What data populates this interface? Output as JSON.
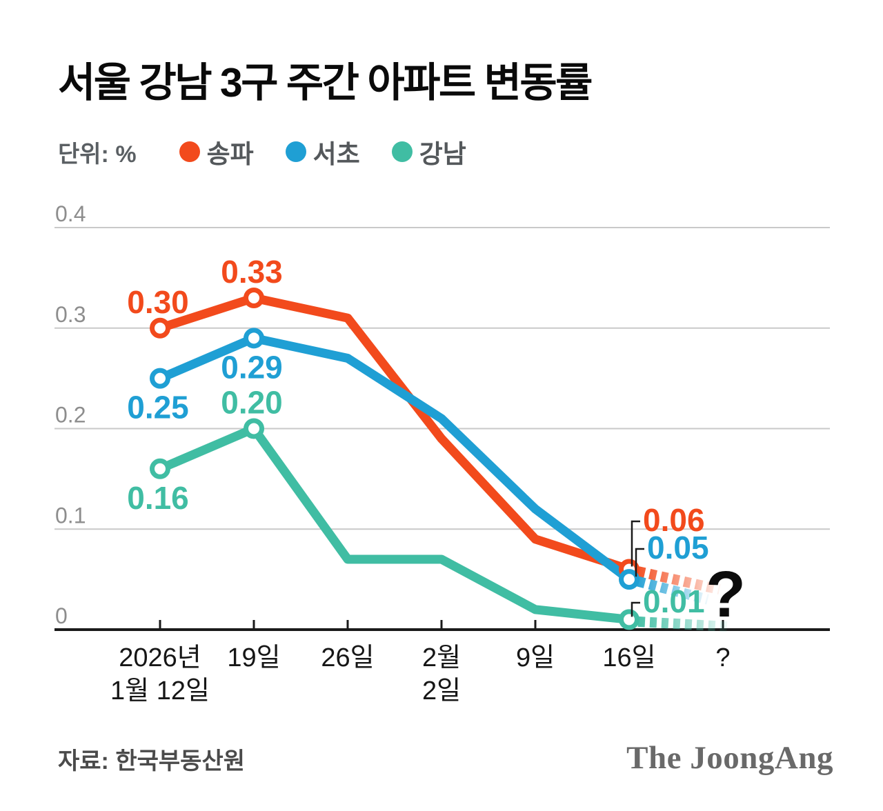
{
  "header": {
    "title": "서울 강남 3구 주간 아파트 변동률",
    "unit_label": "단위: %"
  },
  "legend": {
    "items": [
      {
        "key": "songpa",
        "label": "송파",
        "color": "#F24A1C"
      },
      {
        "key": "seocho",
        "label": "서초",
        "color": "#1F9FD4"
      },
      {
        "key": "gangnam",
        "label": "강남",
        "color": "#40BDA3"
      }
    ]
  },
  "footer": {
    "source": "자료: 한국부동산원",
    "logo": "The JoongAng"
  },
  "chart_data": {
    "type": "line",
    "title": "서울 강남 3구 주간 아파트 변동률",
    "unit": "%",
    "x_categories": [
      [
        "2026년",
        "1월 12일"
      ],
      [
        "19일"
      ],
      [
        "26일"
      ],
      [
        "2월",
        "2일"
      ],
      [
        "9일"
      ],
      [
        "16일"
      ],
      [
        "?"
      ]
    ],
    "ylim": [
      0,
      0.4
    ],
    "yticks": [
      {
        "value": 0,
        "label": "0"
      },
      {
        "value": 0.1,
        "label": "0.1"
      },
      {
        "value": 0.2,
        "label": "0.2"
      },
      {
        "value": 0.3,
        "label": "0.3"
      },
      {
        "value": 0.4,
        "label": "0.4"
      }
    ],
    "grid": true,
    "legend_position": "top",
    "future_question_mark": "?",
    "series": [
      {
        "key": "songpa",
        "name": "송파",
        "color": "#F24A1C",
        "values": [
          0.3,
          0.33,
          0.31,
          0.19,
          0.09,
          0.06
        ],
        "marker_indices": [
          0,
          1,
          5
        ],
        "value_labels": [
          {
            "index": 0,
            "text": "0.30",
            "placement": "above"
          },
          {
            "index": 1,
            "text": "0.33",
            "placement": "above"
          },
          {
            "index": 5,
            "text": "0.06",
            "placement": "callout"
          }
        ],
        "projection_end_estimate": 0.04
      },
      {
        "key": "seocho",
        "name": "서초",
        "color": "#1F9FD4",
        "values": [
          0.25,
          0.29,
          0.27,
          0.21,
          0.12,
          0.05
        ],
        "marker_indices": [
          0,
          1,
          5
        ],
        "value_labels": [
          {
            "index": 0,
            "text": "0.25",
            "placement": "below"
          },
          {
            "index": 1,
            "text": "0.29",
            "placement": "below"
          },
          {
            "index": 5,
            "text": "0.05",
            "placement": "callout"
          }
        ],
        "projection_end_estimate": 0.03
      },
      {
        "key": "gangnam",
        "name": "강남",
        "color": "#40BDA3",
        "values": [
          0.16,
          0.2,
          0.07,
          0.07,
          0.02,
          0.01
        ],
        "marker_indices": [
          0,
          1,
          5
        ],
        "value_labels": [
          {
            "index": 0,
            "text": "0.16",
            "placement": "below"
          },
          {
            "index": 1,
            "text": "0.20",
            "placement": "above"
          },
          {
            "index": 5,
            "text": "0.01",
            "placement": "callout"
          }
        ],
        "projection_end_estimate": 0.003
      }
    ]
  }
}
